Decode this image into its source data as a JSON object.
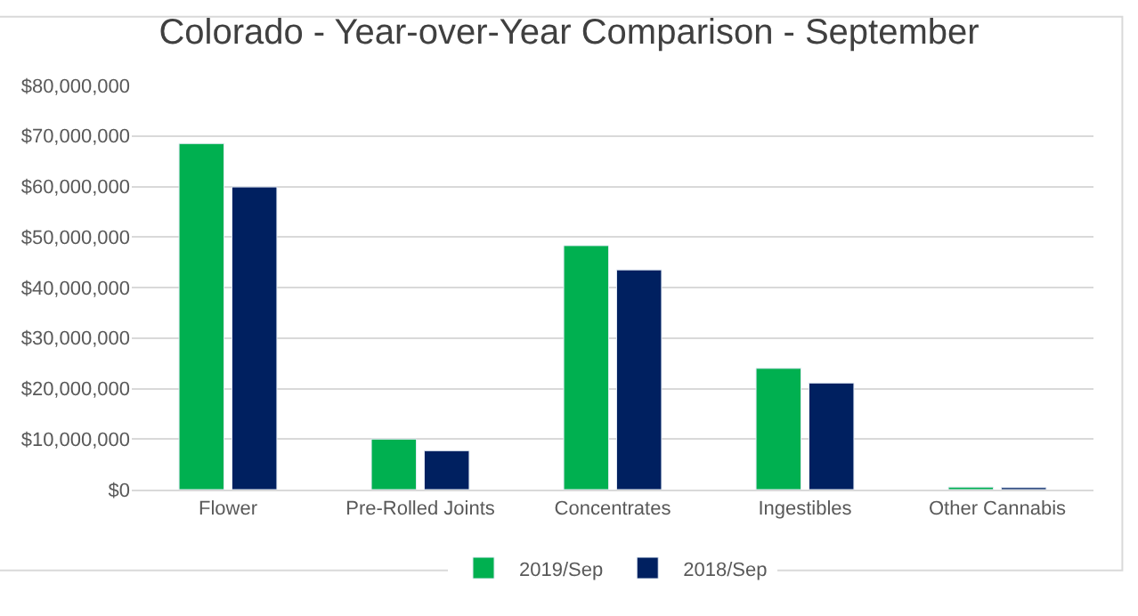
{
  "chart_data": {
    "type": "bar",
    "title": "Colorado - Year-over-Year Comparison - September",
    "categories": [
      "Flower",
      "Pre-Rolled Joints",
      "Concentrates",
      "Ingestibles",
      "Other Cannabis"
    ],
    "series": [
      {
        "name": "2019/Sep",
        "color": "#00b050",
        "values": [
          68500000,
          10000000,
          48300000,
          24000000,
          500000
        ]
      },
      {
        "name": "2018/Sep",
        "color": "#002060",
        "values": [
          59900000,
          7700000,
          43500000,
          21100000,
          400000
        ]
      }
    ],
    "ylim": [
      0,
      80000000
    ],
    "yticks": [
      {
        "value": 0,
        "label": "$0"
      },
      {
        "value": 10000000,
        "label": "$10,000,000"
      },
      {
        "value": 20000000,
        "label": "$20,000,000"
      },
      {
        "value": 30000000,
        "label": "$30,000,000"
      },
      {
        "value": 40000000,
        "label": "$40,000,000"
      },
      {
        "value": 50000000,
        "label": "$50,000,000"
      },
      {
        "value": 60000000,
        "label": "$60,000,000"
      },
      {
        "value": 70000000,
        "label": "$70,000,000"
      },
      {
        "value": 80000000,
        "label": "$80,000,000"
      }
    ],
    "grid": "y",
    "legend": "bottom"
  }
}
